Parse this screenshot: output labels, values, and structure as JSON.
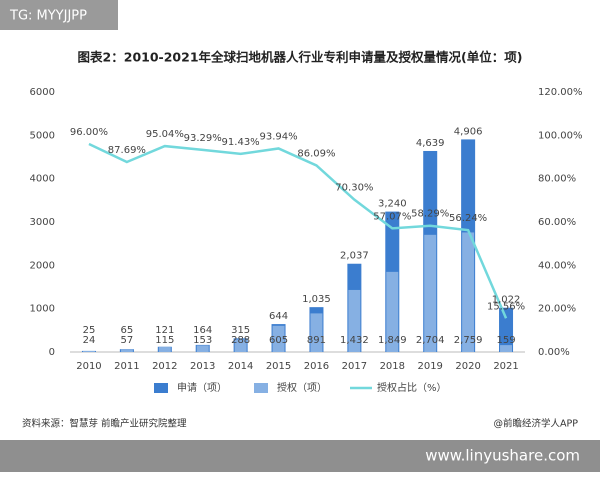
{
  "tag": "TG: MYYJJPP",
  "source": "资料来源：智慧芽 前瞻产业研究院整理",
  "credit": "@前瞻经济学人APP",
  "site": "www.linyushare.com",
  "chart_data": {
    "type": "bar",
    "title": "图表2：2010-2021年全球扫地机器人行业专利申请量及授权量情况(单位：项)",
    "categories": [
      "2010",
      "2011",
      "2012",
      "2013",
      "2014",
      "2015",
      "2016",
      "2017",
      "2018",
      "2019",
      "2020",
      "2021"
    ],
    "series": [
      {
        "name": "申请（项）",
        "color": "#3b7dcf",
        "values": [
          25,
          65,
          121,
          164,
          315,
          644,
          1035,
          2037,
          3240,
          4639,
          4906,
          1022
        ],
        "value_labels": [
          "25",
          "65",
          "121",
          "164",
          "315",
          "644",
          "1,035",
          "2,037",
          "3,240",
          "4,639",
          "4,906",
          "1,022"
        ]
      },
      {
        "name": "授权（项）",
        "color": "#86b0e3",
        "values": [
          24,
          57,
          115,
          153,
          288,
          605,
          891,
          1432,
          1849,
          2704,
          2759,
          159
        ],
        "value_labels": [
          "24",
          "57",
          "115",
          "153",
          "288",
          "605",
          "891",
          "1,432",
          "1,849",
          "2,704",
          "2,759",
          "159"
        ]
      },
      {
        "name": "授权占比（%）",
        "type": "line",
        "axis": "y2",
        "color": "#72d8dc",
        "values": [
          96.0,
          87.69,
          95.04,
          93.29,
          91.43,
          93.94,
          86.09,
          70.3,
          57.07,
          58.29,
          56.24,
          15.56
        ],
        "value_labels": [
          "96.00%",
          "87.69%",
          "95.04%",
          "93.29%",
          "91.43%",
          "93.94%",
          "86.09%",
          "70.30%",
          "57.07%",
          "58.29%",
          "56.24%",
          "15.56%"
        ]
      }
    ],
    "ylim": [
      0,
      6000
    ],
    "yticks": [
      0,
      1000,
      2000,
      3000,
      4000,
      5000,
      6000
    ],
    "y2lim": [
      0,
      120
    ],
    "y2ticks": [
      {
        "value": 0,
        "label": "0.00%"
      },
      {
        "value": 20,
        "label": "20.00%"
      },
      {
        "value": 40,
        "label": "40.00%"
      },
      {
        "value": 60,
        "label": "60.00%"
      },
      {
        "value": 80,
        "label": "80.00%"
      },
      {
        "value": 100,
        "label": "100.00%"
      },
      {
        "value": 120,
        "label": "120.00%"
      }
    ],
    "legend": "bottom"
  }
}
